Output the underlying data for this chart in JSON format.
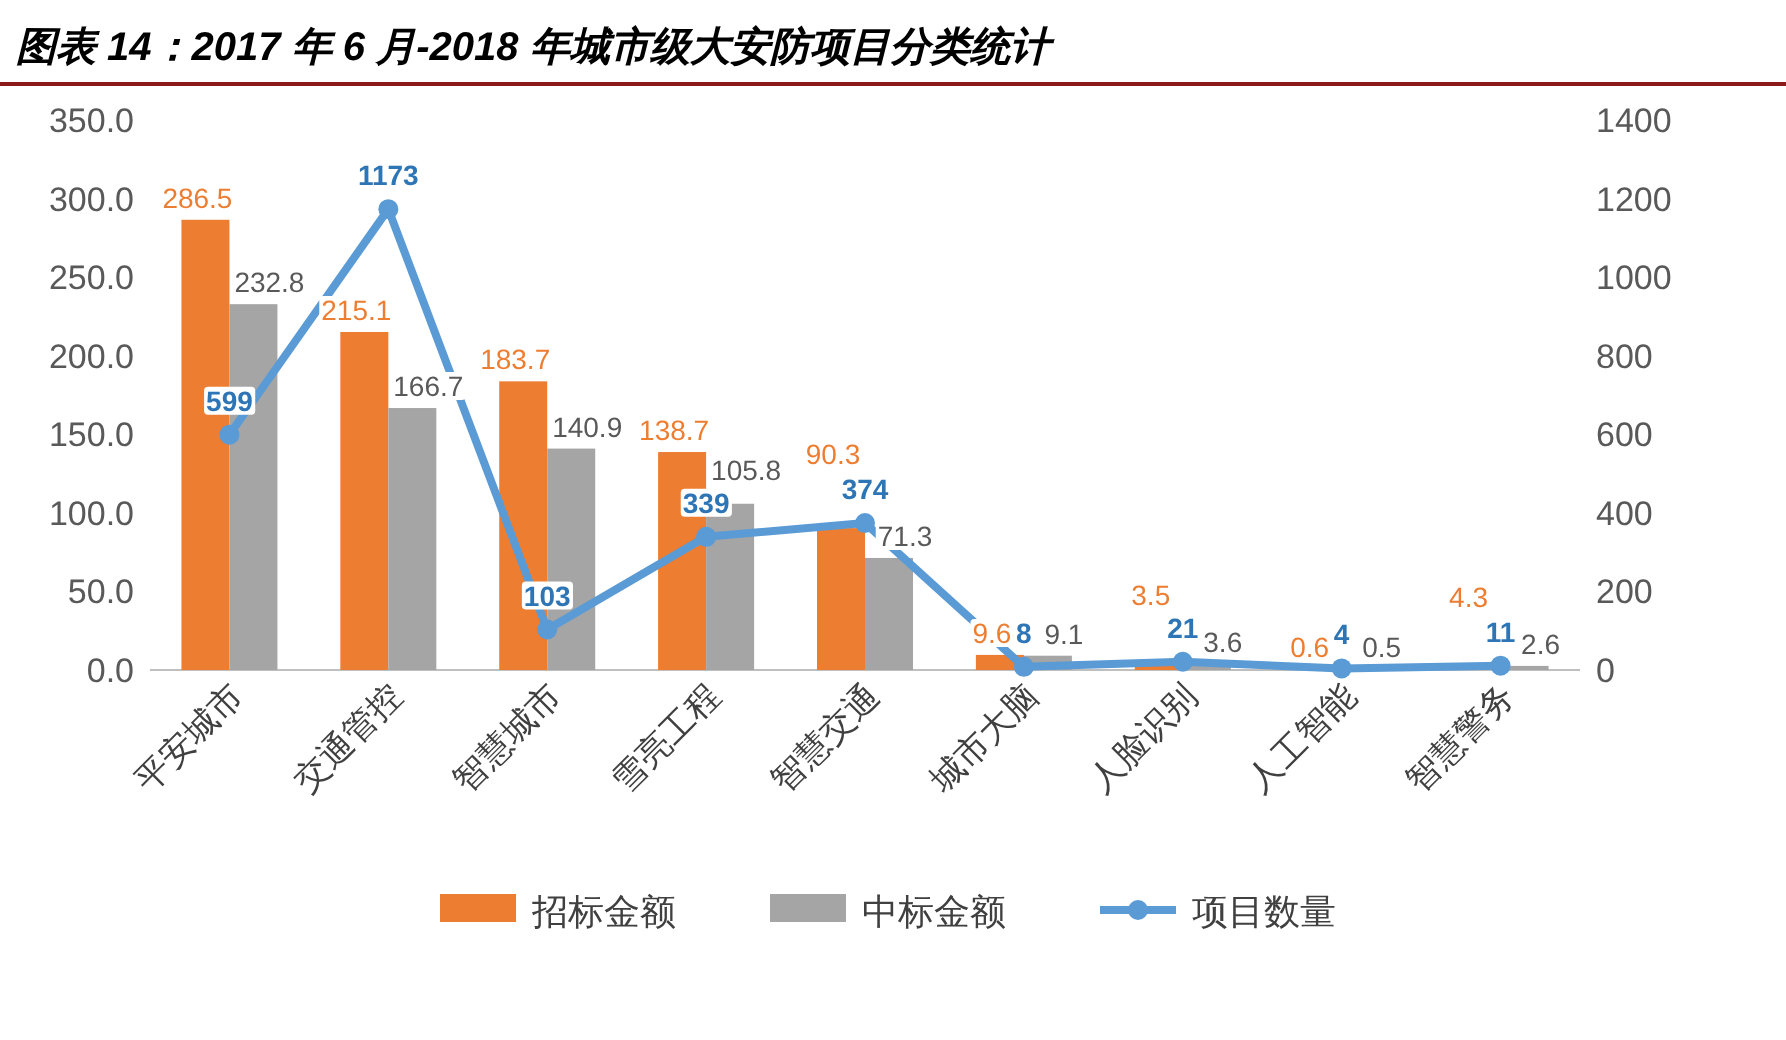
{
  "chart_data": {
    "type": "bar",
    "title": "图表 14：2017 年 6 月-2018 年城市级大安防项目分类统计",
    "categories": [
      "平安城市",
      "交通管控",
      "智慧城市",
      "雪亮工程",
      "智慧交通",
      "城市大脑",
      "人脸识别",
      "人工智能",
      "智慧警务"
    ],
    "series": [
      {
        "name": "招标金额",
        "color": "#ed7d31",
        "values": [
          286.5,
          215.1,
          183.7,
          138.7,
          90.3,
          9.6,
          3.5,
          0.6,
          4.3
        ]
      },
      {
        "name": "中标金额",
        "color": "#a5a5a5",
        "values": [
          232.8,
          166.7,
          140.9,
          105.8,
          71.3,
          9.1,
          3.6,
          0.5,
          2.6
        ]
      },
      {
        "name": "项目数量",
        "color": "#5b9bd5",
        "type": "line",
        "axis": "y2",
        "marker": "circle",
        "values": [
          599,
          1173,
          103,
          339,
          374,
          8,
          21,
          4,
          11
        ]
      }
    ],
    "ylim": [
      0,
      350
    ],
    "yticks": [
      {
        "value": 0,
        "label": "0.0"
      },
      {
        "value": 50,
        "label": "50.0"
      },
      {
        "value": 100,
        "label": "100.0"
      },
      {
        "value": 150,
        "label": "150.0"
      },
      {
        "value": 200,
        "label": "200.0"
      },
      {
        "value": 250,
        "label": "250.0"
      },
      {
        "value": 300,
        "label": "300.0"
      },
      {
        "value": 350,
        "label": "350.0"
      }
    ],
    "y2lim": [
      0,
      1400
    ],
    "y2ticks": [
      0,
      200,
      400,
      600,
      800,
      1000,
      1200,
      1400
    ],
    "data_labels": true,
    "legend": "bottom",
    "grid": false
  }
}
